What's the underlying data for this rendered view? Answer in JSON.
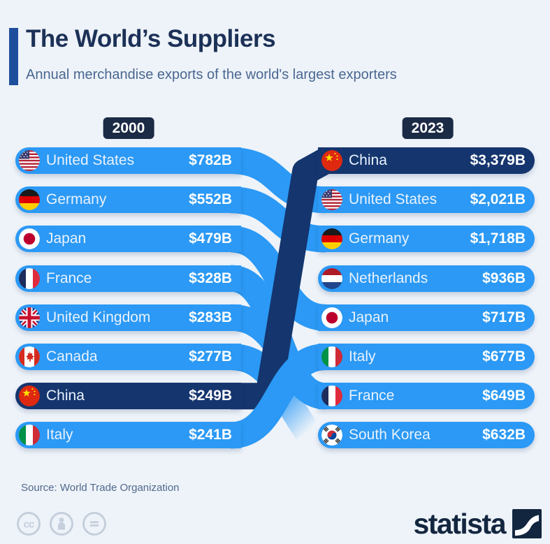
{
  "header": {
    "title": "The World’s Suppliers",
    "subtitle": "Annual merchandise exports of the world's largest exporters"
  },
  "chart_data": {
    "type": "table",
    "title": "The World’s Suppliers",
    "subtitle": "Annual merchandise exports of the world's largest exporters",
    "unit": "USD billion",
    "legend_position": "none",
    "grid": false,
    "series": [
      {
        "name": "2000",
        "points": [
          {
            "country": "United States",
            "value": 782,
            "label": "$782B",
            "flag": "us",
            "highlight": false
          },
          {
            "country": "Germany",
            "value": 552,
            "label": "$552B",
            "flag": "de",
            "highlight": false
          },
          {
            "country": "Japan",
            "value": 479,
            "label": "$479B",
            "flag": "jp",
            "highlight": false
          },
          {
            "country": "France",
            "value": 328,
            "label": "$328B",
            "flag": "fr",
            "highlight": false
          },
          {
            "country": "United Kingdom",
            "value": 283,
            "label": "$283B",
            "flag": "gb",
            "highlight": false
          },
          {
            "country": "Canada",
            "value": 277,
            "label": "$277B",
            "flag": "ca",
            "highlight": false
          },
          {
            "country": "China",
            "value": 249,
            "label": "$249B",
            "flag": "cn",
            "highlight": true
          },
          {
            "country": "Italy",
            "value": 241,
            "label": "$241B",
            "flag": "it",
            "highlight": false
          }
        ]
      },
      {
        "name": "2023",
        "points": [
          {
            "country": "China",
            "value": 3379,
            "label": "$3,379B",
            "flag": "cn",
            "highlight": true
          },
          {
            "country": "United States",
            "value": 2021,
            "label": "$2,021B",
            "flag": "us",
            "highlight": false
          },
          {
            "country": "Germany",
            "value": 1718,
            "label": "$1,718B",
            "flag": "de",
            "highlight": false
          },
          {
            "country": "Netherlands",
            "value": 936,
            "label": "$936B",
            "flag": "nl",
            "highlight": false,
            "new_entry": true
          },
          {
            "country": "Japan",
            "value": 717,
            "label": "$717B",
            "flag": "jp",
            "highlight": false
          },
          {
            "country": "Italy",
            "value": 677,
            "label": "$677B",
            "flag": "it",
            "highlight": false
          },
          {
            "country": "France",
            "value": 649,
            "label": "$649B",
            "flag": "fr",
            "highlight": false
          },
          {
            "country": "South Korea",
            "value": 632,
            "label": "$632B",
            "flag": "kr",
            "highlight": false,
            "new_entry": true
          }
        ]
      }
    ],
    "flows": [
      {
        "country": "United States",
        "from": 0,
        "to": 1
      },
      {
        "country": "Germany",
        "from": 1,
        "to": 2
      },
      {
        "country": "Japan",
        "from": 2,
        "to": 4
      },
      {
        "country": "France",
        "from": 3,
        "to": 6
      },
      {
        "country": "United Kingdom",
        "from": 4,
        "to": null
      },
      {
        "country": "Canada",
        "from": 5,
        "to": null
      },
      {
        "country": "China",
        "from": 6,
        "to": 0,
        "highlight": true
      },
      {
        "country": "Italy",
        "from": 7,
        "to": 5
      }
    ]
  },
  "colors": {
    "row_blue": "#2b99f5",
    "row_navy": "#15356e",
    "badge_navy": "#1b2a45",
    "background": "#eef3f9",
    "title": "#1c3157",
    "subtitle": "#4a6791",
    "accent_bar": "#1d4f9c",
    "source_text": "#51688c",
    "logo_navy": "#13263f",
    "license_icon_gray": "#c5cfdc"
  },
  "footer": {
    "source": "Source: World Trade Organization",
    "brand": "statista",
    "icons": [
      "cc-icon",
      "attribution-icon",
      "equals-icon"
    ]
  }
}
